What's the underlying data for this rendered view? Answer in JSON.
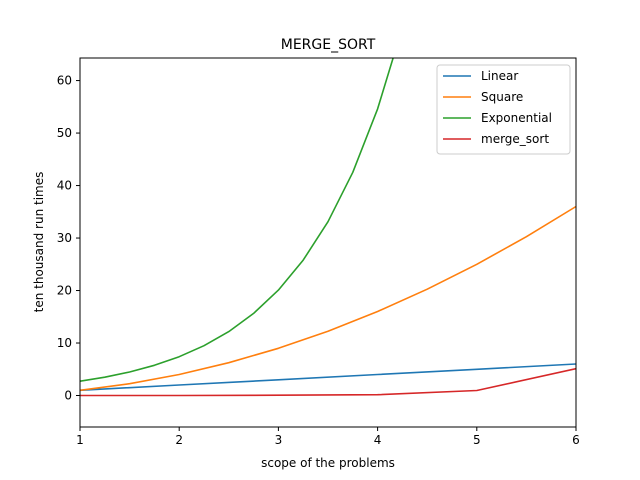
{
  "chart_data": {
    "type": "line",
    "title": "MERGE_SORT",
    "xlabel": "scope of the problems",
    "ylabel": "ten thousand run times",
    "xlim": [
      1,
      6
    ],
    "ylim": [
      -6,
      64.3
    ],
    "xticks": [
      1,
      2,
      3,
      4,
      5,
      6
    ],
    "yticks": [
      0,
      10,
      20,
      30,
      40,
      50,
      60
    ],
    "grid": false,
    "legend_position": "top-right",
    "series": [
      {
        "name": "Linear",
        "color": "#1f77b4",
        "x": [
          1,
          2,
          3,
          4,
          5,
          6
        ],
        "y": [
          1,
          2,
          3,
          4,
          5,
          6
        ]
      },
      {
        "name": "Square",
        "color": "#ff7f0e",
        "x": [
          1,
          1.5,
          2,
          2.5,
          3,
          3.5,
          4,
          4.5,
          5,
          5.5,
          6
        ],
        "y": [
          1,
          2.25,
          4,
          6.25,
          9,
          12.25,
          16,
          20.25,
          25,
          30.25,
          36
        ]
      },
      {
        "name": "Exponential",
        "color": "#2ca02c",
        "x": [
          1,
          1.25,
          1.5,
          1.75,
          2,
          2.25,
          2.5,
          2.75,
          3,
          3.25,
          3.5,
          3.75,
          4,
          4.25
        ],
        "y": [
          2.72,
          3.49,
          4.48,
          5.75,
          7.39,
          9.49,
          12.18,
          15.64,
          20.09,
          25.79,
          33.12,
          42.52,
          54.6,
          70.11
        ]
      },
      {
        "name": "merge_sort",
        "color": "#d62728",
        "x": [
          1,
          2,
          3,
          4,
          5,
          6
        ],
        "y": [
          0,
          0,
          0.05,
          0.15,
          0.95,
          5.1
        ]
      }
    ]
  }
}
